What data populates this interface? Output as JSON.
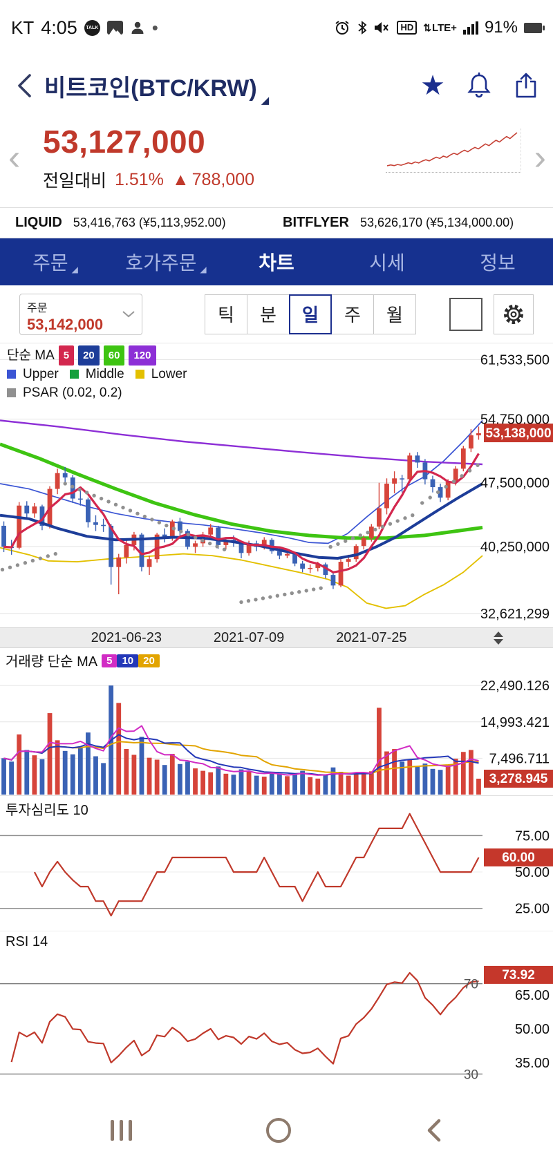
{
  "colors": {
    "up": "#d6443a",
    "down": "#3a62b5",
    "badge": "#c5372b",
    "accent_red": "#c0392b",
    "navy": "#16318f",
    "indicator_line": "#c0392b",
    "psar": "#909090"
  },
  "status_bar": {
    "carrier": "KT",
    "time": "4:05",
    "talk": "TALK",
    "hd": "HD",
    "lte": "LTE+",
    "lte_arrows": "⇅",
    "battery": "91%"
  },
  "header": {
    "title": "비트코인(BTC/KRW)",
    "caret": "◢"
  },
  "price_summary": {
    "price": "53,127,000",
    "change_label": "전일대비",
    "change_pct": "1.51%",
    "direction": "▲",
    "change_amt": "788,000"
  },
  "exchanges": [
    {
      "name": "LIQUID",
      "value": "53,416,763 (¥5,113,952.00)"
    },
    {
      "name": "BITFLYER",
      "value": "53,626,170 (¥5,134,000.00)"
    }
  ],
  "nav_tabs": [
    {
      "label": "주문",
      "caret": "◢"
    },
    {
      "label": "호가주문",
      "caret": "◢"
    },
    {
      "label": "차트",
      "active": true
    },
    {
      "label": "시세"
    },
    {
      "label": "정보"
    }
  ],
  "toolbar": {
    "order_label": "주문",
    "order_price": "53,142,000",
    "periods": [
      "틱",
      "분",
      "일",
      "주",
      "월"
    ],
    "selected_period": "일"
  },
  "chart_data": {
    "type": "candlestick",
    "sparkline": {
      "values": [
        37.8,
        38.2,
        37.9,
        38.4,
        38.1,
        38.6,
        39.2,
        38.8,
        39.6,
        39.1,
        40.0,
        40.6,
        40.1,
        41.0,
        41.8,
        41.2,
        42.3,
        41.7,
        42.8,
        43.6,
        43.0,
        44.1,
        45.0,
        44.3,
        45.4,
        46.3,
        45.6,
        46.8,
        47.9,
        47.1,
        48.4,
        49.6,
        48.8,
        50.1,
        51.3,
        50.4,
        51.8,
        53.1
      ]
    },
    "price_pane": {
      "legend": {
        "ma_label": "단순 MA",
        "ma_items": [
          {
            "label": "5",
            "color": "#d3274e"
          },
          {
            "label": "20",
            "color": "#1d3d99"
          },
          {
            "label": "60",
            "color": "#3ec412"
          },
          {
            "label": "120",
            "color": "#8d2fd6"
          }
        ],
        "band_items": [
          {
            "label": "Upper",
            "color": "#3b55d4"
          },
          {
            "label": "Middle",
            "color": "#15a03c"
          },
          {
            "label": "Lower",
            "color": "#e3c000"
          }
        ],
        "psar_label": "PSAR (0.02, 0.2)",
        "psar_color": "#909090"
      },
      "y_ticks": [
        {
          "label": "61,533,500",
          "value": 61.5335
        },
        {
          "label": "54,750,000",
          "value": 54.75
        },
        {
          "label": "47,500,000",
          "value": 47.5
        },
        {
          "label": "40,250,000",
          "value": 40.25
        },
        {
          "label": "32,621,299",
          "value": 32.621299
        }
      ],
      "current_price_badge": "53,138,000",
      "current_price_value": 53.138,
      "y_range": [
        31.5,
        62.9
      ],
      "x_labels": [
        {
          "label": "2021-06-23",
          "index": 16
        },
        {
          "label": "2021-07-09",
          "index": 32
        },
        {
          "label": "2021-07-25",
          "index": 48
        }
      ],
      "candles": [
        [
          42.6,
          43.1,
          39.6,
          40.2
        ],
        [
          40.2,
          41.0,
          39.3,
          40.1
        ],
        [
          40.1,
          45.3,
          39.9,
          44.9
        ],
        [
          44.9,
          45.4,
          43.3,
          44.0
        ],
        [
          44.0,
          45.2,
          43.5,
          44.8
        ],
        [
          44.8,
          45.0,
          42.1,
          42.6
        ],
        [
          42.6,
          47.1,
          42.3,
          46.8
        ],
        [
          46.8,
          49.1,
          46.2,
          48.6
        ],
        [
          48.6,
          49.3,
          47.2,
          48.1
        ],
        [
          48.1,
          48.4,
          45.2,
          45.7
        ],
        [
          45.7,
          46.6,
          44.9,
          45.6
        ],
        [
          45.6,
          45.8,
          42.4,
          43.0
        ],
        [
          43.0,
          43.8,
          42.0,
          42.7
        ],
        [
          42.7,
          43.4,
          41.9,
          42.6
        ],
        [
          42.6,
          42.8,
          35.9,
          37.9
        ],
        [
          37.9,
          39.4,
          34.8,
          39.0
        ],
        [
          39.0,
          41.0,
          38.3,
          40.4
        ],
        [
          40.4,
          41.9,
          39.8,
          41.6
        ],
        [
          41.6,
          41.8,
          37.4,
          37.9
        ],
        [
          37.9,
          39.2,
          37.0,
          38.8
        ],
        [
          38.8,
          41.8,
          38.4,
          41.6
        ],
        [
          41.6,
          42.3,
          40.7,
          41.3
        ],
        [
          41.3,
          43.3,
          40.9,
          43.1
        ],
        [
          43.1,
          43.5,
          41.5,
          42.0
        ],
        [
          42.0,
          42.2,
          39.9,
          40.2
        ],
        [
          40.2,
          40.9,
          39.5,
          40.6
        ],
        [
          40.6,
          41.9,
          40.2,
          41.6
        ],
        [
          41.6,
          42.8,
          41.2,
          42.4
        ],
        [
          42.4,
          42.6,
          40.0,
          40.4
        ],
        [
          40.4,
          41.3,
          39.9,
          41.0
        ],
        [
          41.0,
          41.5,
          40.2,
          40.7
        ],
        [
          40.7,
          40.9,
          38.9,
          39.5
        ],
        [
          39.5,
          40.9,
          39.2,
          40.6
        ],
        [
          40.6,
          40.9,
          39.7,
          40.2
        ],
        [
          40.2,
          41.3,
          39.9,
          41.0
        ],
        [
          41.0,
          41.2,
          39.4,
          39.7
        ],
        [
          39.7,
          40.1,
          38.8,
          39.2
        ],
        [
          39.2,
          39.9,
          38.9,
          39.4
        ],
        [
          39.4,
          39.6,
          38.0,
          38.3
        ],
        [
          38.3,
          38.6,
          37.3,
          37.7
        ],
        [
          37.7,
          38.2,
          37.2,
          37.8
        ],
        [
          37.8,
          38.5,
          37.4,
          38.2
        ],
        [
          38.2,
          38.4,
          36.6,
          37.0
        ],
        [
          37.0,
          37.2,
          35.4,
          35.8
        ],
        [
          35.8,
          38.8,
          35.6,
          38.5
        ],
        [
          38.5,
          39.3,
          37.9,
          38.8
        ],
        [
          38.8,
          40.5,
          38.5,
          40.3
        ],
        [
          40.3,
          41.5,
          39.9,
          41.2
        ],
        [
          41.2,
          42.8,
          40.8,
          42.5
        ],
        [
          42.5,
          47.5,
          42.2,
          44.6
        ],
        [
          44.6,
          48.0,
          43.9,
          47.4
        ],
        [
          47.4,
          48.8,
          46.3,
          48.0
        ],
        [
          48.0,
          48.4,
          46.4,
          47.9
        ],
        [
          47.9,
          50.9,
          47.5,
          50.6
        ],
        [
          50.6,
          51.0,
          49.2,
          49.8
        ],
        [
          49.8,
          50.2,
          47.3,
          47.9
        ],
        [
          47.9,
          48.3,
          46.4,
          47.0
        ],
        [
          47.0,
          47.4,
          45.3,
          45.8
        ],
        [
          45.8,
          47.9,
          45.5,
          47.6
        ],
        [
          47.6,
          49.4,
          47.2,
          49.1
        ],
        [
          49.1,
          51.7,
          48.8,
          51.4
        ],
        [
          51.4,
          53.6,
          51.0,
          52.9
        ],
        [
          52.9,
          53.9,
          52.4,
          53.138
        ]
      ],
      "overlays": {
        "ma120": [
          [
            0,
            54.6
          ],
          [
            0.12,
            53.9
          ],
          [
            0.25,
            53.0
          ],
          [
            0.38,
            52.2
          ],
          [
            0.5,
            51.6
          ],
          [
            0.62,
            51.0
          ],
          [
            0.75,
            50.4
          ],
          [
            0.88,
            49.9
          ],
          [
            1,
            49.6
          ]
        ],
        "ma60": [
          [
            0,
            51.9
          ],
          [
            0.08,
            50.3
          ],
          [
            0.16,
            48.5
          ],
          [
            0.24,
            46.8
          ],
          [
            0.32,
            45.2
          ],
          [
            0.4,
            43.9
          ],
          [
            0.48,
            42.8
          ],
          [
            0.56,
            42.0
          ],
          [
            0.64,
            41.5
          ],
          [
            0.72,
            41.2
          ],
          [
            0.8,
            41.2
          ],
          [
            0.88,
            41.5
          ],
          [
            1,
            42.4
          ]
        ],
        "ma20": [
          [
            0,
            43.8
          ],
          [
            0.06,
            43.4
          ],
          [
            0.12,
            42.3
          ],
          [
            0.18,
            41.4
          ],
          [
            0.24,
            41.0
          ],
          [
            0.3,
            41.1
          ],
          [
            0.36,
            41.3
          ],
          [
            0.42,
            41.2
          ],
          [
            0.48,
            40.8
          ],
          [
            0.54,
            40.3
          ],
          [
            0.6,
            39.6
          ],
          [
            0.66,
            39.0
          ],
          [
            0.7,
            38.9
          ],
          [
            0.74,
            39.3
          ],
          [
            0.78,
            40.2
          ],
          [
            0.82,
            41.3
          ],
          [
            0.86,
            42.7
          ],
          [
            0.9,
            44.1
          ],
          [
            0.95,
            45.8
          ],
          [
            1,
            47.4
          ]
        ],
        "bb_upper": [
          [
            0,
            47.4
          ],
          [
            0.06,
            46.8
          ],
          [
            0.12,
            45.8
          ],
          [
            0.18,
            44.8
          ],
          [
            0.24,
            44.0
          ],
          [
            0.3,
            43.4
          ],
          [
            0.36,
            43.0
          ],
          [
            0.42,
            42.7
          ],
          [
            0.48,
            42.3
          ],
          [
            0.54,
            41.8
          ],
          [
            0.6,
            41.2
          ],
          [
            0.64,
            40.7
          ],
          [
            0.68,
            40.6
          ],
          [
            0.72,
            41.7
          ],
          [
            0.76,
            43.6
          ],
          [
            0.8,
            45.4
          ],
          [
            0.84,
            47.0
          ],
          [
            0.88,
            48.2
          ],
          [
            0.92,
            50.0
          ],
          [
            0.96,
            52.2
          ],
          [
            1,
            54.6
          ]
        ],
        "bb_lower": [
          [
            0,
            40.1
          ],
          [
            0.06,
            39.3
          ],
          [
            0.1,
            38.6
          ],
          [
            0.16,
            38.5
          ],
          [
            0.22,
            38.8
          ],
          [
            0.3,
            39.1
          ],
          [
            0.38,
            39.4
          ],
          [
            0.44,
            39.2
          ],
          [
            0.5,
            38.7
          ],
          [
            0.56,
            38.0
          ],
          [
            0.62,
            37.3
          ],
          [
            0.68,
            36.5
          ],
          [
            0.72,
            35.6
          ],
          [
            0.76,
            33.8
          ],
          [
            0.8,
            33.2
          ],
          [
            0.84,
            33.5
          ],
          [
            0.88,
            34.8
          ],
          [
            0.92,
            35.9
          ],
          [
            0.96,
            37.3
          ],
          [
            1,
            39.2
          ]
        ],
        "psar_runs": [
          [
            0.005,
            0.115,
            37.6,
            39.4,
            8
          ],
          [
            0.135,
            0.465,
            47.4,
            39.9,
            23
          ],
          [
            0.5,
            0.665,
            33.9,
            35.5,
            12
          ],
          [
            0.685,
            0.855,
            40.2,
            43.8,
            12
          ],
          [
            0.875,
            0.99,
            45.2,
            49.5,
            8
          ]
        ]
      }
    },
    "volume_pane": {
      "title": "거래량 단순 MA",
      "ma_items": [
        {
          "label": "5",
          "color": "#d12cc4"
        },
        {
          "label": "10",
          "color": "#2438b8"
        },
        {
          "label": "20",
          "color": "#e2a400"
        }
      ],
      "y_ticks": [
        {
          "label": "22,490.126",
          "value": 22.490126
        },
        {
          "label": "14,993.421",
          "value": 14.993421
        },
        {
          "label": "7,496.711",
          "value": 7.496711
        }
      ],
      "current_badge": "3,278.945",
      "current_value": 3.278945,
      "y_max": 26.5,
      "volumes": [
        7.5,
        6.8,
        12.4,
        9.2,
        8.1,
        7.3,
        16.8,
        11.2,
        9.0,
        8.3,
        9.6,
        12.8,
        7.9,
        6.5,
        22.49,
        18.9,
        9.4,
        8.2,
        11.9,
        7.6,
        7.2,
        6.1,
        8.4,
        6.3,
        6.8,
        5.4,
        4.9,
        4.6,
        5.8,
        4.3,
        4.1,
        5.2,
        4.8,
        3.9,
        3.7,
        4.6,
        4.2,
        3.8,
        4.4,
        4.9,
        3.6,
        3.3,
        4.1,
        5.6,
        4.7,
        3.9,
        4.4,
        4.2,
        4.8,
        17.9,
        8.9,
        9.4,
        6.8,
        7.2,
        5.9,
        6.4,
        5.3,
        5.1,
        6.2,
        7.4,
        8.8,
        9.2,
        3.279
      ]
    },
    "sentiment_pane": {
      "title": "투자심리도 10",
      "period": 10,
      "y_ticks": [
        {
          "label": "75.00",
          "value": 75,
          "dark": true
        },
        {
          "label": "50.00",
          "value": 50
        },
        {
          "label": "25.00",
          "value": 25,
          "dark": true
        }
      ],
      "current_badge": "60.00",
      "current_value": 60,
      "y_range": [
        13,
        88
      ]
    },
    "rsi_pane": {
      "title": "RSI 14",
      "period": 14,
      "y_ticks": [
        {
          "label": "65.00",
          "value": 65
        },
        {
          "label": "50.00",
          "value": 50
        },
        {
          "label": "35.00",
          "value": 35
        }
      ],
      "inner_labels": [
        {
          "label": "70",
          "value": 70
        },
        {
          "label": "30",
          "value": 30
        }
      ],
      "dark_lines": [
        70,
        30
      ],
      "current_badge": "73.92",
      "current_value": 73.92,
      "y_range": [
        24,
        84
      ]
    }
  }
}
